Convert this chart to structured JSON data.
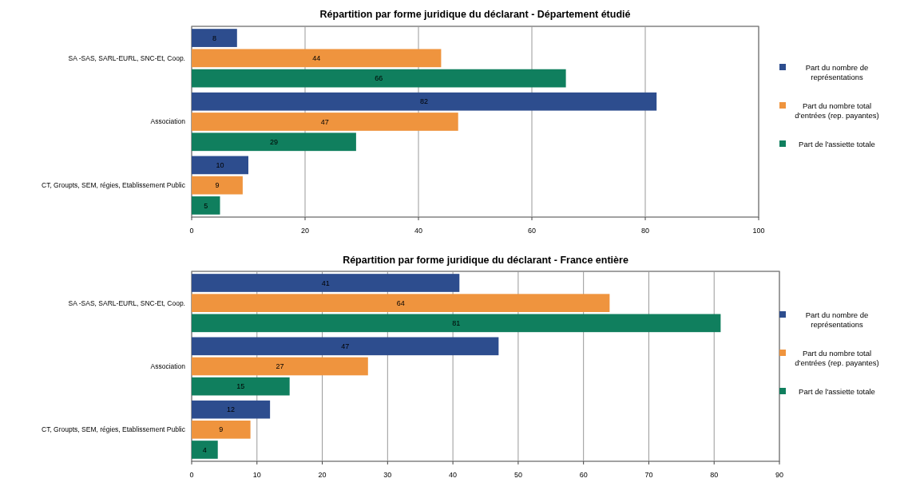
{
  "chart_data": [
    {
      "type": "bar",
      "orientation": "horizontal",
      "title": "Répartition par forme juridique du déclarant - Département étudié",
      "categories": [
        "SA -SAS, SARL-EURL, SNC-Et, Coop.",
        "Association",
        "CT, Groupts, SEM, régies, Etablissement Public"
      ],
      "series": [
        {
          "name": "Part du nombre de représentations",
          "color": "#2d4d8e",
          "values": [
            8,
            82,
            10
          ]
        },
        {
          "name": "Part du nombre total d'entrées (rep. payantes)",
          "color": "#ef943e",
          "values": [
            44,
            47,
            9
          ]
        },
        {
          "name": "Part de l'assiette totale",
          "color": "#107f5e",
          "values": [
            66,
            29,
            5
          ]
        }
      ],
      "xlim": [
        0,
        100
      ],
      "xticks": [
        0,
        20,
        40,
        60,
        80,
        100
      ],
      "grid": "x",
      "legend": "right",
      "data_labels": true
    },
    {
      "type": "bar",
      "orientation": "horizontal",
      "title": "Répartition par forme juridique du déclarant - France entière",
      "categories": [
        "SA -SAS, SARL-EURL, SNC-Et, Coop.",
        "Association",
        "CT, Groupts, SEM, régies, Etablissement Public"
      ],
      "series": [
        {
          "name": "Part du nombre de représentations",
          "color": "#2d4d8e",
          "values": [
            41,
            47,
            12
          ]
        },
        {
          "name": "Part du nombre total d'entrées (rep. payantes)",
          "color": "#ef943e",
          "values": [
            64,
            27,
            9
          ]
        },
        {
          "name": "Part de l'assiette totale",
          "color": "#107f5e",
          "values": [
            81,
            15,
            4
          ]
        }
      ],
      "xlim": [
        0,
        90
      ],
      "xticks": [
        0,
        10,
        20,
        30,
        40,
        50,
        60,
        70,
        80,
        90
      ],
      "grid": "x",
      "legend": "right",
      "data_labels": true
    }
  ]
}
